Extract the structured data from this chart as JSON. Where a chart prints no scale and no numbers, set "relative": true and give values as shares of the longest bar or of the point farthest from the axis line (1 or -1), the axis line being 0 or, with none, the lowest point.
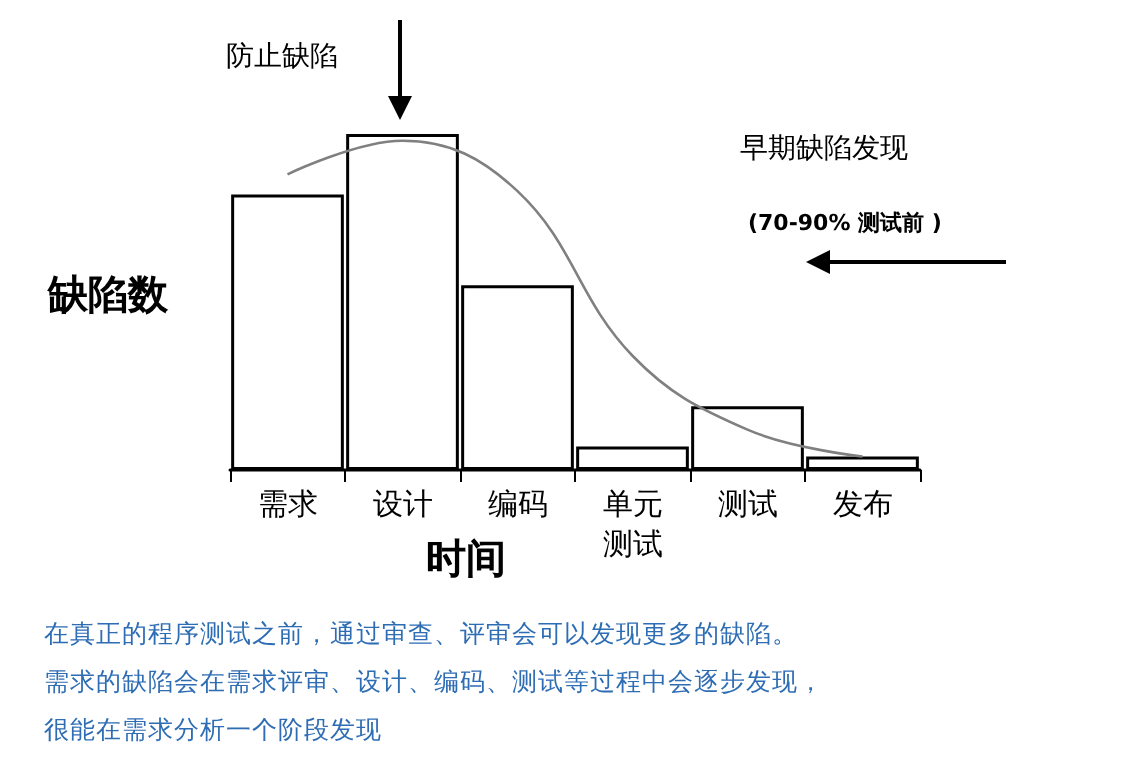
{
  "chart_data": {
    "type": "bar",
    "relative": true,
    "xlabel": "时间",
    "ylabel": "缺陷数",
    "categories": [
      "需求",
      "设计",
      "编码",
      "单元测试",
      "测试",
      "发布"
    ],
    "series": [
      {
        "color": "#000000",
        "values": [
          0.82,
          1,
          0.55,
          0.07,
          0.19,
          0.04
        ]
      },
      {
        "type": "line",
        "color": "#808080",
        "values": [
          0.88,
          0.98,
          0.83,
          0.34,
          0.12,
          0.04
        ]
      }
    ],
    "annotations": [
      "防止缺陷",
      "早期缺陷发现",
      "(70-90% 测试前 )",
      "在真正的程序测试之前，通过审查、评审会可以发现更多的缺陷。",
      "需求的缺陷会在需求评审、设计、编码、测试等过程中会逐步发现，",
      "很能在需求分析一个阶段发现"
    ],
    "grid": false,
    "marker": "none"
  }
}
